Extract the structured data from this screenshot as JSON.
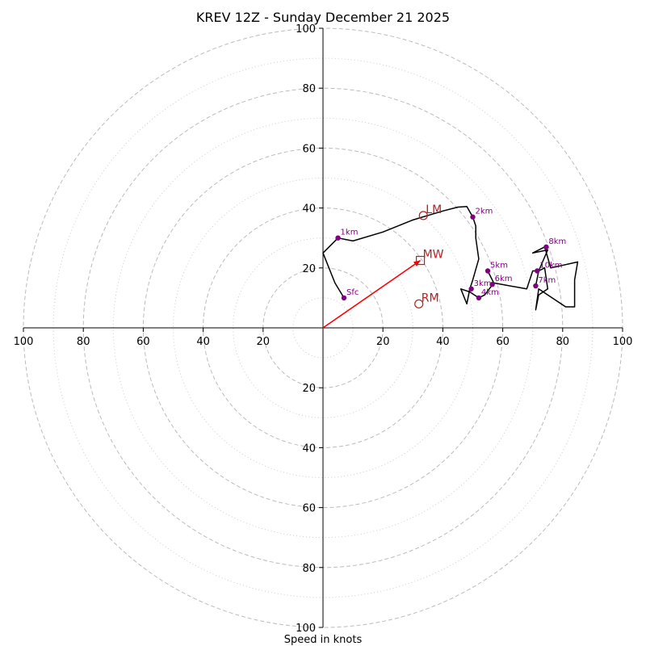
{
  "chart_data": {
    "type": "hodograph",
    "title": "KREV 12Z - Sunday December 21 2025",
    "xlabel": "Speed in knots",
    "range": [
      -100,
      100
    ],
    "rings_major": [
      20,
      40,
      60,
      80,
      100
    ],
    "rings_minor": [
      10,
      30,
      50,
      70,
      90
    ],
    "ticks": [
      {
        "v": -100,
        "label": "100"
      },
      {
        "v": -80,
        "label": "80"
      },
      {
        "v": -60,
        "label": "60"
      },
      {
        "v": -40,
        "label": "40"
      },
      {
        "v": -20,
        "label": "20"
      },
      {
        "v": 20,
        "label": "20"
      },
      {
        "v": 40,
        "label": "40"
      },
      {
        "v": 60,
        "label": "60"
      },
      {
        "v": 80,
        "label": "80"
      },
      {
        "v": 100,
        "label": "100"
      }
    ],
    "trace": [
      [
        7,
        10
      ],
      [
        4,
        15
      ],
      [
        0,
        25
      ],
      [
        5,
        30
      ],
      [
        10,
        29
      ],
      [
        20,
        32
      ],
      [
        30,
        36
      ],
      [
        40,
        39
      ],
      [
        45,
        40.3
      ],
      [
        48,
        40.5
      ],
      [
        50,
        37
      ],
      [
        51,
        34
      ],
      [
        51,
        30
      ],
      [
        52,
        23
      ],
      [
        50,
        16
      ],
      [
        49,
        13
      ],
      [
        48,
        8
      ],
      [
        46,
        13
      ],
      [
        49,
        12
      ],
      [
        52,
        10
      ],
      [
        54,
        11
      ],
      [
        57,
        15
      ],
      [
        55,
        19
      ],
      [
        57,
        15
      ],
      [
        68,
        13
      ],
      [
        70,
        19
      ],
      [
        72,
        19
      ],
      [
        75,
        26
      ],
      [
        70,
        25
      ],
      [
        74,
        27
      ],
      [
        76,
        20
      ],
      [
        85,
        22
      ],
      [
        84,
        16
      ],
      [
        84,
        7
      ],
      [
        81,
        7
      ],
      [
        72,
        13
      ],
      [
        71,
        6
      ],
      [
        72,
        11
      ],
      [
        75,
        13
      ],
      [
        74,
        20
      ],
      [
        72,
        19
      ],
      [
        71,
        14
      ]
    ],
    "height_labels": [
      {
        "label": "Sfc",
        "u": 7,
        "v": 10
      },
      {
        "label": "1km",
        "u": 5,
        "v": 30
      },
      {
        "label": "2km",
        "u": 50,
        "v": 37
      },
      {
        "label": "3km",
        "u": 49.5,
        "v": 13
      },
      {
        "label": "4km",
        "u": 52,
        "v": 10
      },
      {
        "label": "5km",
        "u": 55,
        "v": 19
      },
      {
        "label": "6km",
        "u": 56.5,
        "v": 14.5
      },
      {
        "label": "7km",
        "u": 71,
        "v": 14
      },
      {
        "label": "8km",
        "u": 74.5,
        "v": 27
      },
      {
        "label": "10km",
        "u": 71.5,
        "v": 19
      }
    ],
    "motions": [
      {
        "label": "LM",
        "shape": "circle",
        "u": 33.5,
        "v": 37.5
      },
      {
        "label": "MW",
        "shape": "square",
        "u": 32.5,
        "v": 22.5
      },
      {
        "label": "RM",
        "shape": "circle",
        "u": 32,
        "v": 8
      }
    ],
    "arrow": {
      "u": 32.5,
      "v": 22.5
    },
    "colors": {
      "trace": "#000000",
      "points": "#800080",
      "motion": "#b22222",
      "arrow": "#ff0000",
      "ring": "#bbbbbb",
      "axis": "#000000"
    }
  }
}
